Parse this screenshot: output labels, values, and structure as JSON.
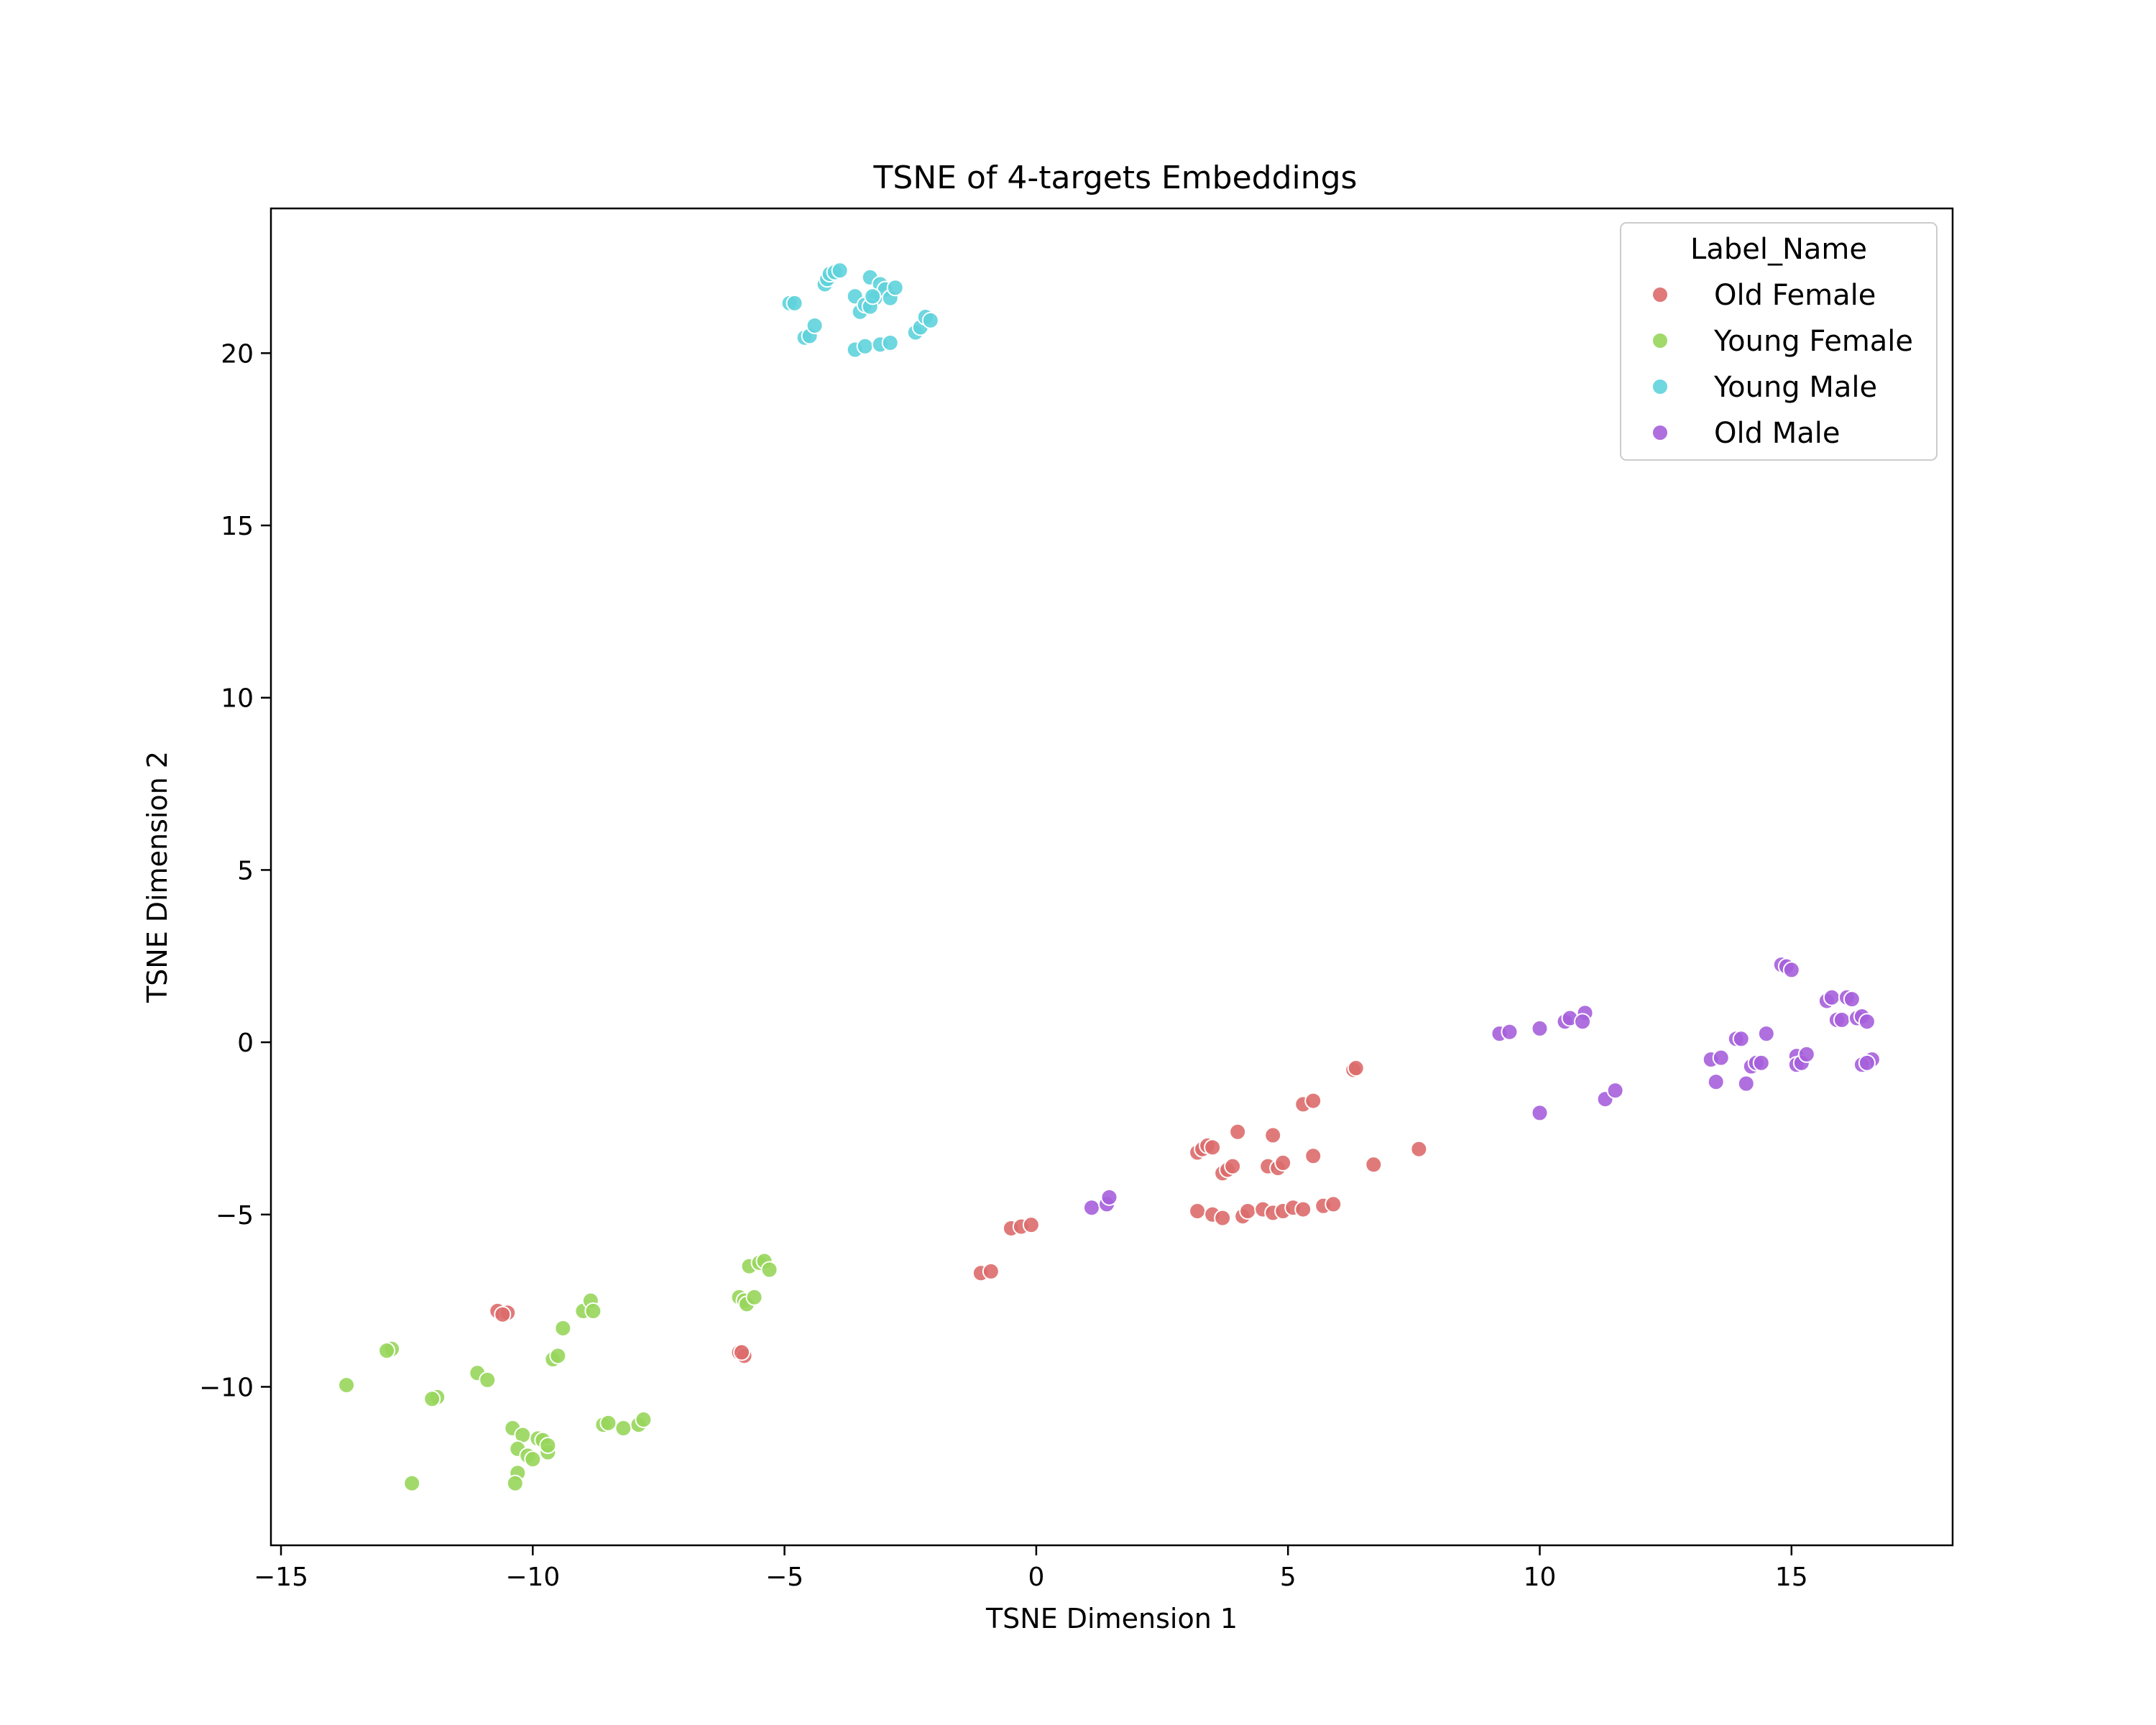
{
  "chart_data": {
    "type": "scatter",
    "title": "TSNE of 4-targets Embeddings",
    "xlabel": "TSNE Dimension 1",
    "ylabel": "TSNE Dimension 2",
    "xlim": [
      -15.2,
      18.2
    ],
    "ylim": [
      -14.6,
      24.2
    ],
    "xticks": [
      -15,
      -10,
      -5,
      0,
      5,
      10,
      15
    ],
    "xtick_labels": [
      "−15",
      "−10",
      "−5",
      "0",
      "5",
      "10",
      "15"
    ],
    "yticks": [
      -10,
      -5,
      0,
      5,
      10,
      15,
      20
    ],
    "ytick_labels": [
      "−10",
      "−5",
      "0",
      "5",
      "10",
      "15",
      "20"
    ],
    "grid": false,
    "legend": {
      "title": "Label_Name",
      "placement": "top-right"
    },
    "series": [
      {
        "name": "Old Female",
        "color": "#dd6b6b",
        "x": [
          -10.7,
          -10.5,
          -10.6,
          -5.9,
          -5.8,
          -5.85,
          -1.1,
          -0.9,
          -0.5,
          -0.3,
          -0.1,
          3.2,
          3.3,
          3.4,
          3.5,
          3.7,
          3.8,
          3.9,
          4.0,
          3.2,
          3.5,
          3.7,
          4.1,
          4.2,
          4.5,
          4.7,
          4.9,
          5.1,
          5.3,
          5.7,
          5.9,
          4.6,
          4.8,
          4.9,
          4.7,
          5.5,
          5.3,
          5.5,
          6.3,
          6.35,
          6.7,
          7.6
        ],
        "y": [
          -7.8,
          -7.85,
          -7.9,
          -9.0,
          -9.1,
          -9.0,
          -6.7,
          -6.65,
          -5.4,
          -5.35,
          -5.3,
          -3.2,
          -3.1,
          -3.0,
          -3.05,
          -3.8,
          -3.7,
          -3.6,
          -2.6,
          -4.9,
          -5.0,
          -5.1,
          -5.05,
          -4.9,
          -4.85,
          -4.95,
          -4.9,
          -4.8,
          -4.85,
          -4.75,
          -4.7,
          -3.6,
          -3.65,
          -3.5,
          -2.7,
          -3.3,
          -1.8,
          -1.7,
          -0.8,
          -0.75,
          -3.55,
          -3.1
        ]
      },
      {
        "name": "Young Female",
        "color": "#97d65b",
        "x": [
          -13.7,
          -12.8,
          -12.9,
          -12.4,
          -11.9,
          -12.0,
          -11.1,
          -10.9,
          -10.4,
          -10.2,
          -10.3,
          -10.1,
          -10.0,
          -9.9,
          -9.8,
          -9.7,
          -9.7,
          -10.3,
          -10.35,
          -9.6,
          -9.5,
          -9.4,
          -9.0,
          -8.85,
          -8.8,
          -8.6,
          -8.5,
          -8.2,
          -7.9,
          -7.8,
          -5.9,
          -5.8,
          -5.75,
          -5.7,
          -5.6,
          -5.5,
          -5.4,
          -5.3
        ],
        "y": [
          -9.95,
          -8.9,
          -8.95,
          -12.8,
          -10.3,
          -10.35,
          -9.6,
          -9.8,
          -11.2,
          -11.4,
          -11.8,
          -12.0,
          -12.1,
          -11.5,
          -11.55,
          -11.9,
          -11.7,
          -12.5,
          -12.8,
          -9.2,
          -9.1,
          -8.3,
          -7.8,
          -7.5,
          -7.8,
          -11.1,
          -11.05,
          -11.2,
          -11.1,
          -10.95,
          -7.4,
          -7.5,
          -7.6,
          -6.5,
          -7.4,
          -6.4,
          -6.35,
          -6.6
        ]
      },
      {
        "name": "Young Male",
        "color": "#5ed3dc",
        "x": [
          -4.9,
          -4.8,
          -4.6,
          -4.5,
          -4.4,
          -4.2,
          -4.15,
          -4.1,
          -4.0,
          -3.9,
          -3.6,
          -3.5,
          -3.4,
          -3.3,
          -3.2,
          -3.1,
          -3.0,
          -2.9,
          -2.8,
          -3.3,
          -3.25,
          -3.6,
          -3.4,
          -3.1,
          -2.9,
          -2.4,
          -2.3,
          -2.2,
          -2.1
        ],
        "y": [
          21.45,
          21.45,
          20.45,
          20.5,
          20.8,
          22.0,
          22.15,
          22.3,
          22.35,
          22.4,
          21.65,
          21.2,
          21.4,
          22.2,
          21.6,
          22.0,
          21.85,
          21.6,
          21.9,
          21.35,
          21.65,
          20.1,
          20.2,
          20.25,
          20.3,
          20.6,
          20.75,
          21.05,
          20.95
        ]
      },
      {
        "name": "Old Male",
        "color": "#a65fdc",
        "x": [
          1.1,
          1.4,
          1.45,
          9.2,
          9.4,
          10.0,
          10.5,
          10.6,
          10.9,
          10.85,
          10.0,
          11.3,
          11.5,
          13.4,
          13.5,
          13.6,
          13.9,
          14.0,
          14.1,
          14.2,
          14.3,
          14.4,
          14.5,
          14.8,
          14.9,
          15.0,
          15.1,
          15.1,
          15.2,
          15.3,
          15.7,
          15.8,
          15.9,
          16.0,
          16.1,
          16.2,
          16.3,
          16.4,
          16.5,
          16.6,
          16.4,
          16.5
        ],
        "y": [
          -4.8,
          -4.7,
          -4.5,
          0.25,
          0.3,
          0.4,
          0.6,
          0.7,
          0.85,
          0.6,
          -2.05,
          -1.65,
          -1.4,
          -0.5,
          -1.15,
          -0.45,
          0.1,
          0.1,
          -1.2,
          -0.7,
          -0.6,
          -0.6,
          0.25,
          2.25,
          2.2,
          2.1,
          -0.4,
          -0.65,
          -0.6,
          -0.35,
          1.2,
          1.3,
          0.65,
          0.65,
          1.3,
          1.25,
          0.7,
          0.75,
          0.6,
          -0.5,
          -0.65,
          -0.6
        ]
      }
    ]
  }
}
